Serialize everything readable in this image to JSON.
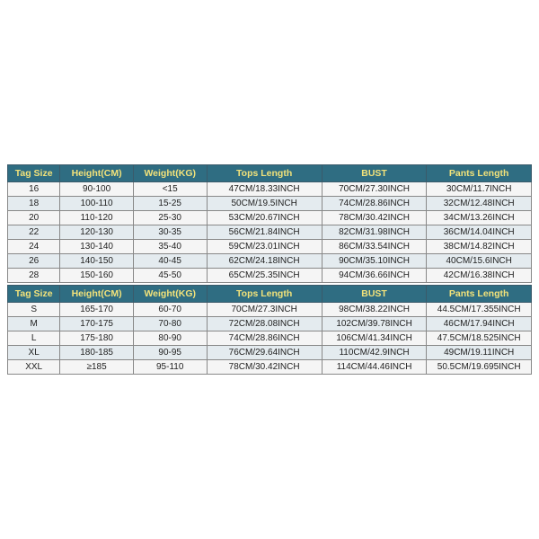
{
  "header_bg": "#2f6d82",
  "header_color": "#f2e27a",
  "row_bg": "#f5f5f5",
  "row_alt_bg": "#e4ebef",
  "border_color": "#3a5a6a",
  "cell_border": "#888888",
  "text_color": "#222222",
  "header_fontsize": 10.5,
  "cell_fontsize": 10,
  "table1": {
    "columns": [
      "Tag Size",
      "Height(CM)",
      "Weight(KG)",
      "Tops Length",
      "BUST",
      "Pants Length"
    ],
    "rows": [
      [
        "16",
        "90-100",
        "<15",
        "47CM/18.33INCH",
        "70CM/27.30INCH",
        "30CM/11.7INCH"
      ],
      [
        "18",
        "100-110",
        "15-25",
        "50CM/19.5INCH",
        "74CM/28.86INCH",
        "32CM/12.48INCH"
      ],
      [
        "20",
        "110-120",
        "25-30",
        "53CM/20.67INCH",
        "78CM/30.42INCH",
        "34CM/13.26INCH"
      ],
      [
        "22",
        "120-130",
        "30-35",
        "56CM/21.84INCH",
        "82CM/31.98INCH",
        "36CM/14.04INCH"
      ],
      [
        "24",
        "130-140",
        "35-40",
        "59CM/23.01INCH",
        "86CM/33.54INCH",
        "38CM/14.82INCH"
      ],
      [
        "26",
        "140-150",
        "40-45",
        "62CM/24.18INCH",
        "90CM/35.10INCH",
        "40CM/15.6INCH"
      ],
      [
        "28",
        "150-160",
        "45-50",
        "65CM/25.35INCH",
        "94CM/36.66INCH",
        "42CM/16.38INCH"
      ]
    ]
  },
  "table2": {
    "columns": [
      "Tag Size",
      "Height(CM)",
      "Weight(KG)",
      "Tops Length",
      "BUST",
      "Pants Length"
    ],
    "rows": [
      [
        "S",
        "165-170",
        "60-70",
        "70CM/27.3INCH",
        "98CM/38.22INCH",
        "44.5CM/17.355INCH"
      ],
      [
        "M",
        "170-175",
        "70-80",
        "72CM/28.08INCH",
        "102CM/39.78INCH",
        "46CM/17.94INCH"
      ],
      [
        "L",
        "175-180",
        "80-90",
        "74CM/28.86INCH",
        "106CM/41.34INCH",
        "47.5CM/18.525INCH"
      ],
      [
        "XL",
        "180-185",
        "90-95",
        "76CM/29.64INCH",
        "110CM/42.9INCH",
        "49CM/19.11INCH"
      ],
      [
        "XXL",
        "≥185",
        "95-110",
        "78CM/30.42INCH",
        "114CM/44.46INCH",
        "50.5CM/19.695INCH"
      ]
    ]
  }
}
